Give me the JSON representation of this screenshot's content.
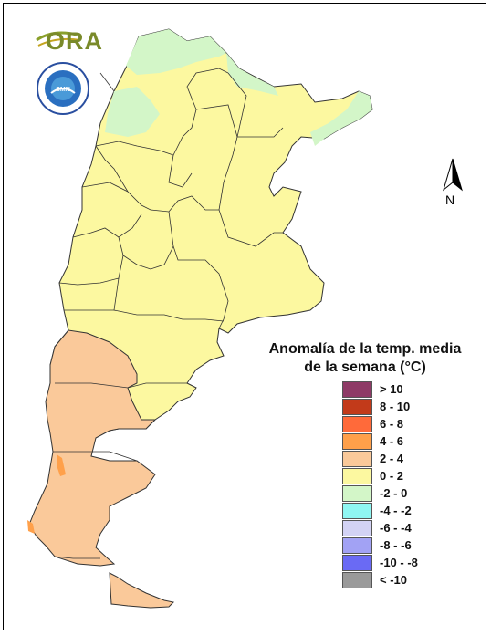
{
  "legend": {
    "title_line1": "Anomalía de la temp. media",
    "title_line2": "de la semana (°C)",
    "items": [
      {
        "label": "> 10",
        "color": "#8e3a66"
      },
      {
        "label": "8 - 10",
        "color": "#c23a1a"
      },
      {
        "label": "6 - 8",
        "color": "#ff6a3a"
      },
      {
        "label": "4 - 6",
        "color": "#ffa04a"
      },
      {
        "label": "2 - 4",
        "color": "#fac99a"
      },
      {
        "label": "0 - 2",
        "color": "#fcf8a0"
      },
      {
        "label": "-2 - 0",
        "color": "#d3f6c8"
      },
      {
        "label": "-4 - -2",
        "color": "#8ff6f2"
      },
      {
        "label": "-6 - -4",
        "color": "#d2d2f4"
      },
      {
        "label": "-8 - -6",
        "color": "#a2a2f4"
      },
      {
        "label": "-10 - -8",
        "color": "#6a6af4"
      },
      {
        "label": "< -10",
        "color": "#9a9a9a"
      }
    ]
  },
  "north_label": "N",
  "logo_text": "ORA",
  "colors": {
    "anomaly_0_2": "#fcf8a0",
    "anomaly_2_4": "#fac99a",
    "anomaly_4_6": "#ffa04a",
    "anomaly_neg2_0": "#d3f6c8",
    "border": "#333333"
  }
}
